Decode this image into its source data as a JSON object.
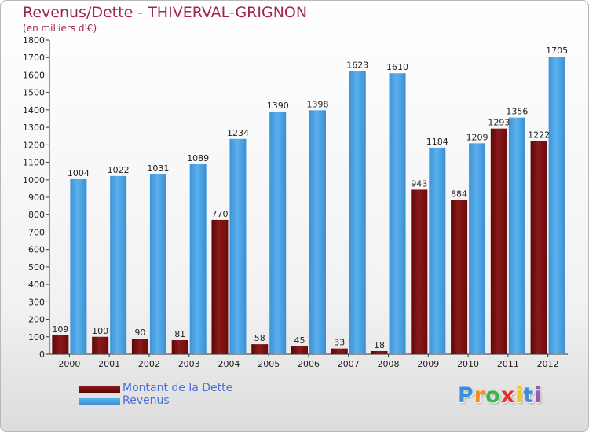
{
  "header": {
    "title": "Revenus/Dette - THIVERVAL-GRIGNON",
    "subtitle": "(en milliers d'€)"
  },
  "legend": {
    "items": [
      {
        "label": "Montant de la Dette",
        "color": "#7a1010"
      },
      {
        "label": "Revenus",
        "color": "#4ea6e6"
      }
    ]
  },
  "logo": {
    "text": "Proxiti",
    "letters": [
      {
        "char": "P",
        "color": "#3b8fd9"
      },
      {
        "char": "r",
        "color": "#f28c1e"
      },
      {
        "char": "o",
        "color": "#3ab54a"
      },
      {
        "char": "x",
        "color": "#e8312f"
      },
      {
        "char": "i",
        "color": "#f5c518"
      },
      {
        "char": "t",
        "color": "#3b8fd9"
      },
      {
        "char": "i",
        "color": "#9b59b6"
      }
    ]
  },
  "chart_data": {
    "type": "bar",
    "title": "Revenus/Dette - THIVERVAL-GRIGNON",
    "ylabel": "(en milliers d'€)",
    "xlabel": "",
    "ylim": [
      0,
      1800
    ],
    "yticks": [
      "0",
      "100",
      "200",
      "300",
      "400",
      "500",
      "600",
      "700",
      "800",
      "900",
      "1000",
      "1100",
      "1200",
      "1300",
      "1400",
      "1500",
      "1600",
      "1700",
      "1800"
    ],
    "categories": [
      "2000",
      "2001",
      "2002",
      "2003",
      "2004",
      "2005",
      "2006",
      "2007",
      "2008",
      "2009",
      "2010",
      "2011",
      "2012"
    ],
    "series": [
      {
        "name": "Montant de la Dette",
        "color": "#7a1010",
        "values": [
          109,
          100,
          90,
          81,
          770,
          58,
          45,
          33,
          18,
          943,
          884,
          1293,
          1222
        ],
        "labels": [
          "109",
          "100",
          "90",
          "81",
          "770",
          "58",
          "45",
          "33",
          "18",
          "943",
          "884",
          "1293",
          "1222"
        ]
      },
      {
        "name": "Revenus",
        "color": "#4ea6e6",
        "values": [
          1004,
          1022,
          1031,
          1089,
          1234,
          1390,
          1398,
          1623,
          1610,
          1184,
          1209,
          1356,
          1705
        ],
        "labels": [
          "1004",
          "1022",
          "1031",
          "1089",
          "1234",
          "1390",
          "1398",
          "1623",
          "1610",
          "1184",
          "1209",
          "1356",
          "1705"
        ]
      }
    ],
    "grid": false,
    "legend_position": "bottom-left"
  }
}
